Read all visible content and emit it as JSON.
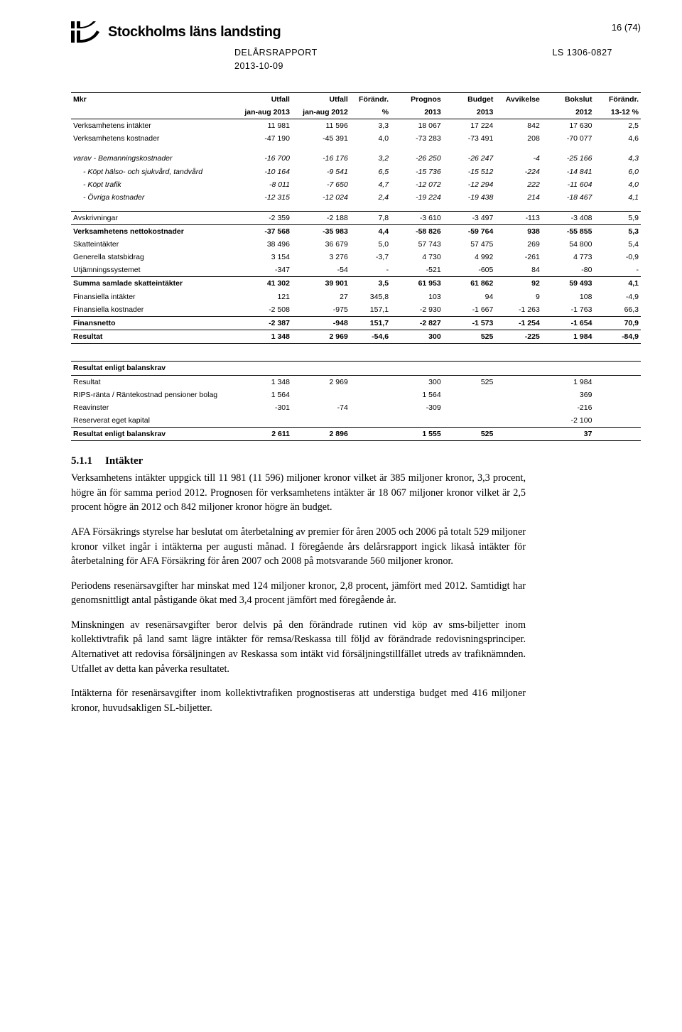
{
  "header": {
    "brand": "Stockholms läns landsting",
    "page_num": "16 (74)",
    "doc_title": "DELÅRSRAPPORT",
    "doc_code": "LS 1306-0827",
    "doc_date": "2013-10-09"
  },
  "table1": {
    "head_row1": [
      "Mkr",
      "Utfall",
      "Utfall",
      "Förändr.",
      "Prognos",
      "Budget",
      "Avvikelse",
      "Bokslut",
      "Förändr."
    ],
    "head_row2": [
      "",
      "jan-aug 2013",
      "jan-aug 2012",
      "%",
      "2013",
      "2013",
      "",
      "2012",
      "13-12 %"
    ],
    "rows": [
      {
        "style": "",
        "cells": [
          "Verksamhetens intäkter",
          "11 981",
          "11 596",
          "3,3",
          "18 067",
          "17 224",
          "842",
          "17 630",
          "2,5"
        ]
      },
      {
        "style": "",
        "cells": [
          "Verksamhetens kostnader",
          "-47 190",
          "-45 391",
          "4,0",
          "-73 283",
          "-73 491",
          "208",
          "-70 077",
          "4,6"
        ]
      },
      {
        "style": "spacer",
        "cells": [
          "",
          "",
          "",
          "",
          "",
          "",
          "",
          "",
          ""
        ]
      },
      {
        "style": "italic",
        "cells": [
          "varav  - Bemanningskostnader",
          "-16 700",
          "-16 176",
          "3,2",
          "-26 250",
          "-26 247",
          "-4",
          "-25 166",
          "4,3"
        ]
      },
      {
        "style": "italic indent",
        "cells": [
          "- Köpt hälso- och sjukvård, tandvård",
          "-10 164",
          "-9 541",
          "6,5",
          "-15 736",
          "-15 512",
          "-224",
          "-14 841",
          "6,0"
        ]
      },
      {
        "style": "italic indent",
        "cells": [
          "- Köpt trafik",
          "-8 011",
          "-7 650",
          "4,7",
          "-12 072",
          "-12 294",
          "222",
          "-11 604",
          "4,0"
        ]
      },
      {
        "style": "italic indent",
        "cells": [
          "- Övriga kostnader",
          "-12 315",
          "-12 024",
          "2,4",
          "-19 224",
          "-19 438",
          "214",
          "-18 467",
          "4,1"
        ]
      },
      {
        "style": "spacer",
        "cells": [
          "",
          "",
          "",
          "",
          "",
          "",
          "",
          "",
          ""
        ]
      },
      {
        "style": "line-above",
        "cells": [
          "Avskrivningar",
          "-2 359",
          "-2 188",
          "7,8",
          "-3 610",
          "-3 497",
          "-113",
          "-3 408",
          "5,9"
        ]
      },
      {
        "style": "bold line-above",
        "cells": [
          "Verksamhetens nettokostnader",
          "-37 568",
          "-35 983",
          "4,4",
          "-58 826",
          "-59 764",
          "938",
          "-55 855",
          "5,3"
        ]
      },
      {
        "style": "",
        "cells": [
          "Skatteintäkter",
          "38 496",
          "36 679",
          "5,0",
          "57 743",
          "57 475",
          "269",
          "54 800",
          "5,4"
        ]
      },
      {
        "style": "",
        "cells": [
          "Generella statsbidrag",
          "3 154",
          "3 276",
          "-3,7",
          "4 730",
          "4 992",
          "-261",
          "4 773",
          "-0,9"
        ]
      },
      {
        "style": "",
        "cells": [
          "Utjämningssystemet",
          "-347",
          "-54",
          "-",
          "-521",
          "-605",
          "84",
          "-80",
          "-"
        ]
      },
      {
        "style": "bold line-above",
        "cells": [
          "Summa samlade skatteintäkter",
          "41 302",
          "39 901",
          "3,5",
          "61 953",
          "61 862",
          "92",
          "59 493",
          "4,1"
        ]
      },
      {
        "style": "",
        "cells": [
          "Finansiella intäkter",
          "121",
          "27",
          "345,8",
          "103",
          "94",
          "9",
          "108",
          "-4,9"
        ]
      },
      {
        "style": "",
        "cells": [
          "Finansiella kostnader",
          "-2 508",
          "-975",
          "157,1",
          "-2 930",
          "-1 667",
          "-1 263",
          "-1 763",
          "66,3"
        ]
      },
      {
        "style": "bold line-above",
        "cells": [
          "Finansnetto",
          "-2 387",
          "-948",
          "151,7",
          "-2 827",
          "-1 573",
          "-1 254",
          "-1 654",
          "70,9"
        ]
      },
      {
        "style": "bold line-above dline-below",
        "cells": [
          "Resultat",
          "1 348",
          "2 969",
          "-54,6",
          "300",
          "525",
          "-225",
          "1 984",
          "-84,9"
        ]
      }
    ]
  },
  "table2": {
    "header": "Resultat enligt balanskrav",
    "rows": [
      {
        "cells": [
          "Resultat",
          "1 348",
          "2 969",
          "",
          "300",
          "525",
          "",
          "1 984",
          ""
        ]
      },
      {
        "cells": [
          "RIPS-ränta / Räntekostnad pensioner bolag",
          "1 564",
          "",
          "",
          "1 564",
          "",
          "",
          "369",
          ""
        ]
      },
      {
        "cells": [
          "Reavinster",
          "-301",
          "-74",
          "",
          "-309",
          "",
          "",
          "-216",
          ""
        ]
      },
      {
        "cells": [
          "Reserverat eget kapital",
          "",
          "",
          "",
          "",
          "",
          "",
          "-2 100",
          ""
        ]
      }
    ],
    "footer": {
      "cells": [
        "Resultat enligt balanskrav",
        "2 611",
        "2 896",
        "",
        "1 555",
        "525",
        "",
        "37",
        ""
      ]
    }
  },
  "body": {
    "h_num": "5.1.1",
    "h_title": "Intäkter",
    "p1": "Verksamhetens intäkter uppgick till 11 981 (11 596) miljoner kronor vilket är 385 miljoner kronor, 3,3 procent, högre än för samma period 2012. Prognosen för verksamhetens intäkter är 18 067 miljoner kronor vilket är 2,5 procent högre än 2012 och 842 miljoner kronor högre än budget.",
    "p2": "AFA Försäkrings styrelse har beslutat om återbetalning av premier för åren 2005 och 2006 på totalt 529 miljoner kronor vilket ingår i intäkterna per augusti månad. I föregående års delårsrapport ingick likaså intäkter för återbetalning för AFA Försäkring för åren 2007 och 2008 på motsvarande 560 miljoner kronor.",
    "p3": "Periodens resenärsavgifter har minskat med 124 miljoner kronor, 2,8 procent, jämfört med 2012. Samtidigt har genomsnittligt antal påstigande ökat med 3,4 procent jämfört med föregående år.",
    "p4": "Minskningen av resenärsavgifter beror delvis på den förändrade rutinen vid köp av sms-biljetter inom kollektivtrafik på land samt lägre intäkter för remsa/Reskassa till följd av förändrade redovisningsprinciper. Alternativet att redovisa försäljningen av Reskassa som intäkt vid försäljningstillfället utreds av trafiknämnden. Utfallet av detta kan påverka resultatet.",
    "p5": "Intäkterna för resenärsavgifter inom kollektivtrafiken prognostiseras att understiga budget med 416 miljoner kronor, huvudsakligen SL-biljetter."
  },
  "style": {
    "font_body": "Georgia, serif",
    "font_ui": "Arial, sans-serif",
    "font_table": "Verdana, sans-serif",
    "text_color": "#000000",
    "bg_color": "#ffffff"
  }
}
